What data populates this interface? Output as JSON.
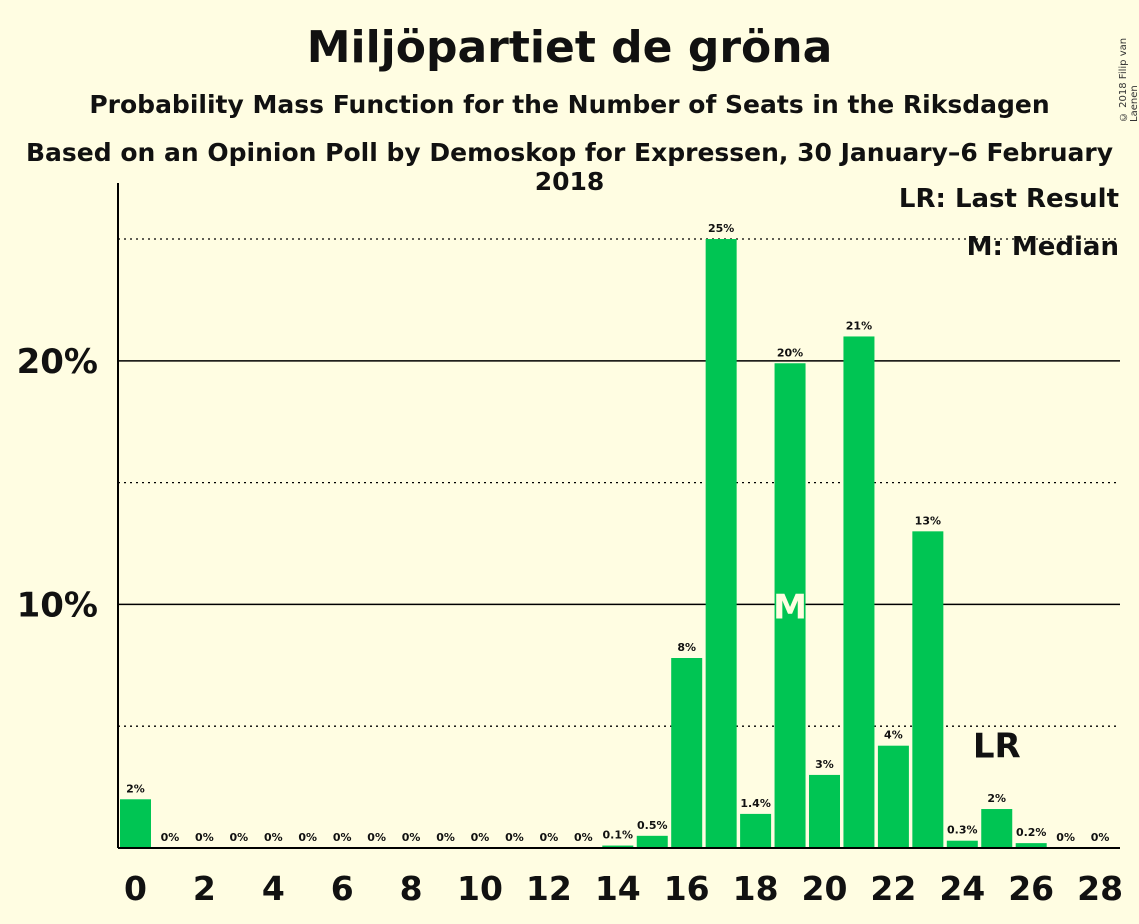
{
  "header": {
    "title": "Miljöpartiet de gröna",
    "subtitle": "Probability Mass Function for the Number of Seats in the Riksdagen",
    "subtitle2": "Based on an Opinion Poll by Demoskop for Expressen, 30 January–6 February 2018",
    "copyright": "© 2018 Filip van Laenen"
  },
  "legend": {
    "last_result": "LR: Last Result",
    "median": "M: Median"
  },
  "colors": {
    "bar": "#00C553",
    "background": "#FFFDE2",
    "axis": "#000000"
  },
  "chart_data": {
    "type": "bar",
    "title": "Miljöpartiet de gröna",
    "categories": [
      0,
      1,
      2,
      3,
      4,
      5,
      6,
      7,
      8,
      9,
      10,
      11,
      12,
      13,
      14,
      15,
      16,
      17,
      18,
      19,
      20,
      21,
      22,
      23,
      24,
      25,
      26,
      27,
      28
    ],
    "values": [
      2,
      0,
      0,
      0,
      0,
      0,
      0,
      0,
      0,
      0,
      0,
      0,
      0,
      0,
      0.1,
      0.5,
      7.8,
      25,
      1.4,
      19.9,
      3,
      21,
      4.2,
      13,
      0.3,
      1.6,
      0.2,
      0,
      0
    ],
    "value_labels": [
      "2%",
      "0%",
      "0%",
      "0%",
      "0%",
      "0%",
      "0%",
      "0%",
      "0%",
      "0%",
      "0%",
      "0%",
      "0%",
      "0%",
      "0.1%",
      "0.5%",
      "8%",
      "25%",
      "1.4%",
      "20%",
      "3%",
      "21%",
      "4%",
      "13%",
      "0.3%",
      "2%",
      "0.2%",
      "0%",
      "0%"
    ],
    "x_tick_labels": [
      "0",
      "2",
      "4",
      "6",
      "8",
      "10",
      "12",
      "14",
      "16",
      "18",
      "20",
      "22",
      "24",
      "26",
      "28"
    ],
    "x_tick_values": [
      0,
      2,
      4,
      6,
      8,
      10,
      12,
      14,
      16,
      18,
      20,
      22,
      24,
      26,
      28
    ],
    "y_tick_labels": [
      "10%",
      "20%"
    ],
    "y_tick_values": [
      10,
      20
    ],
    "y_dotted_lines": [
      5,
      15,
      25
    ],
    "ylim": [
      0,
      27.3
    ],
    "median_seat": 19,
    "median_label": "M",
    "last_result_seat": 25,
    "last_result_label": "LR"
  }
}
